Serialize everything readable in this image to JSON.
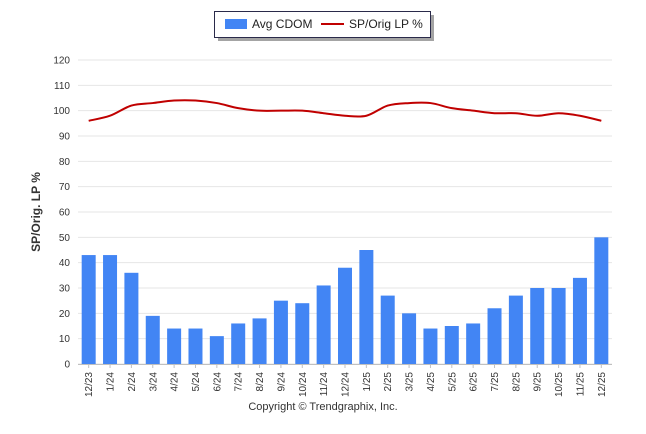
{
  "chart_data": {
    "type": "bar",
    "categories": [
      "12/23",
      "1/24",
      "2/24",
      "3/24",
      "4/24",
      "5/24",
      "6/24",
      "7/24",
      "8/24",
      "9/24",
      "10/24",
      "11/24",
      "12/24",
      "1/25",
      "2/25",
      "3/25",
      "4/25",
      "5/25",
      "6/25",
      "7/25",
      "8/25",
      "9/25",
      "10/25",
      "11/25",
      "12/25"
    ],
    "series": [
      {
        "name": "Avg CDOM",
        "kind": "bar",
        "color": "#4285f4",
        "values": [
          43,
          43,
          36,
          19,
          14,
          14,
          11,
          16,
          18,
          25,
          24,
          31,
          38,
          45,
          27,
          20,
          14,
          15,
          16,
          22,
          27,
          30,
          30,
          34,
          50
        ]
      },
      {
        "name": "SP/Orig LP %",
        "kind": "line",
        "color": "#c00000",
        "values": [
          96,
          98,
          102,
          103,
          104,
          104,
          103,
          101,
          100,
          100,
          100,
          99,
          98,
          98,
          102,
          103,
          103,
          101,
          100,
          99,
          99,
          98,
          99,
          98,
          96
        ]
      }
    ],
    "ylabel": "SP/Orig. LP %",
    "xlabel": "",
    "ylim": [
      0,
      120
    ],
    "yticks": [
      0,
      10,
      20,
      30,
      40,
      50,
      60,
      70,
      80,
      90,
      100,
      110,
      120
    ],
    "grid": true,
    "legend_position": "top-center"
  },
  "footer": {
    "copyright": "Copyright © Trendgraphix, Inc."
  }
}
